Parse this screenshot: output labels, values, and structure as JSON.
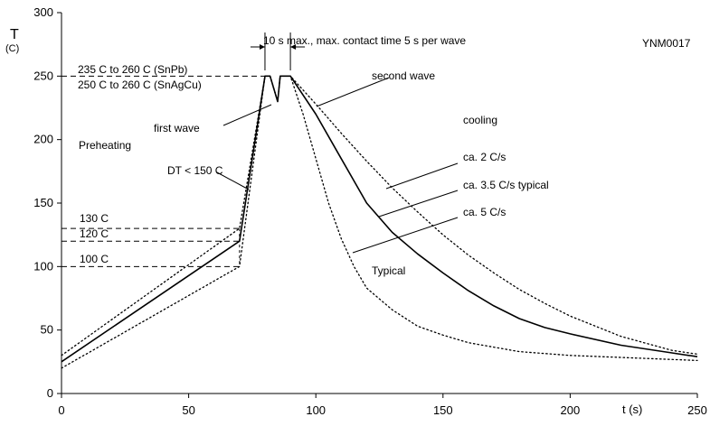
{
  "chart_data": {
    "type": "line",
    "code": "YNM0017",
    "xlabel": "t (s)",
    "ylabel_main": "T",
    "ylabel_unit": "(C)",
    "xlim": [
      0,
      250
    ],
    "ylim": [
      0,
      300
    ],
    "xticks": [
      0,
      50,
      100,
      150,
      200,
      250
    ],
    "yticks": [
      0,
      50,
      100,
      150,
      200,
      250,
      300
    ],
    "grid": false,
    "series": [
      {
        "style": "solid",
        "points": [
          [
            0,
            25
          ],
          [
            70,
            120
          ],
          [
            80,
            250
          ],
          [
            82,
            250
          ],
          [
            85,
            230
          ],
          [
            86,
            250
          ],
          [
            90,
            250
          ],
          [
            100,
            220
          ],
          [
            110,
            185
          ],
          [
            120,
            150
          ],
          [
            130,
            127
          ],
          [
            140,
            110
          ],
          [
            150,
            95
          ],
          [
            160,
            81
          ],
          [
            170,
            69
          ],
          [
            180,
            59
          ],
          [
            190,
            52
          ],
          [
            200,
            47
          ],
          [
            220,
            38
          ],
          [
            240,
            32
          ],
          [
            250,
            29
          ]
        ]
      },
      {
        "style": "dotted",
        "points": [
          [
            0,
            30
          ],
          [
            70,
            130
          ],
          [
            80,
            250
          ],
          [
            82,
            250
          ],
          [
            85,
            230
          ],
          [
            86,
            250
          ],
          [
            90,
            250
          ],
          [
            100,
            228
          ],
          [
            110,
            205
          ],
          [
            120,
            183
          ],
          [
            130,
            162
          ],
          [
            140,
            143
          ],
          [
            150,
            125
          ],
          [
            160,
            109
          ],
          [
            170,
            95
          ],
          [
            180,
            82
          ],
          [
            190,
            71
          ],
          [
            200,
            61
          ],
          [
            220,
            45
          ],
          [
            240,
            34
          ],
          [
            250,
            31
          ]
        ]
      },
      {
        "style": "dotted",
        "points": [
          [
            0,
            20
          ],
          [
            70,
            100
          ],
          [
            80,
            250
          ],
          [
            82,
            250
          ],
          [
            85,
            230
          ],
          [
            86,
            250
          ],
          [
            90,
            250
          ],
          [
            95,
            220
          ],
          [
            100,
            185
          ],
          [
            105,
            150
          ],
          [
            110,
            122
          ],
          [
            115,
            100
          ],
          [
            120,
            83
          ],
          [
            130,
            66
          ],
          [
            140,
            53
          ],
          [
            150,
            46
          ],
          [
            160,
            40
          ],
          [
            180,
            33
          ],
          [
            200,
            30
          ],
          [
            225,
            28
          ],
          [
            250,
            26
          ]
        ]
      }
    ],
    "reference_levels": [
      {
        "value": 250,
        "labels": [
          "235 C  to  260 C (SnPb)",
          "250 C  to  260 C (SnAgCu)"
        ]
      },
      {
        "value": 130,
        "labels": [
          "130 C"
        ]
      },
      {
        "value": 120,
        "labels": [
          "120 C"
        ]
      },
      {
        "value": 100,
        "labels": [
          "100 C"
        ]
      }
    ],
    "annotations": {
      "wave_time": "10 s max., max. contact time 5 s per wave",
      "second_wave": "second wave",
      "first_wave": "first wave",
      "cooling": "cooling",
      "preheating": "Preheating",
      "delta_t": "DT < 150 C",
      "rate_2": "ca. 2 C/s",
      "rate_35": "ca. 3.5 C/s typical",
      "rate_5": "ca. 5 C/s",
      "typical": "Typical"
    }
  }
}
